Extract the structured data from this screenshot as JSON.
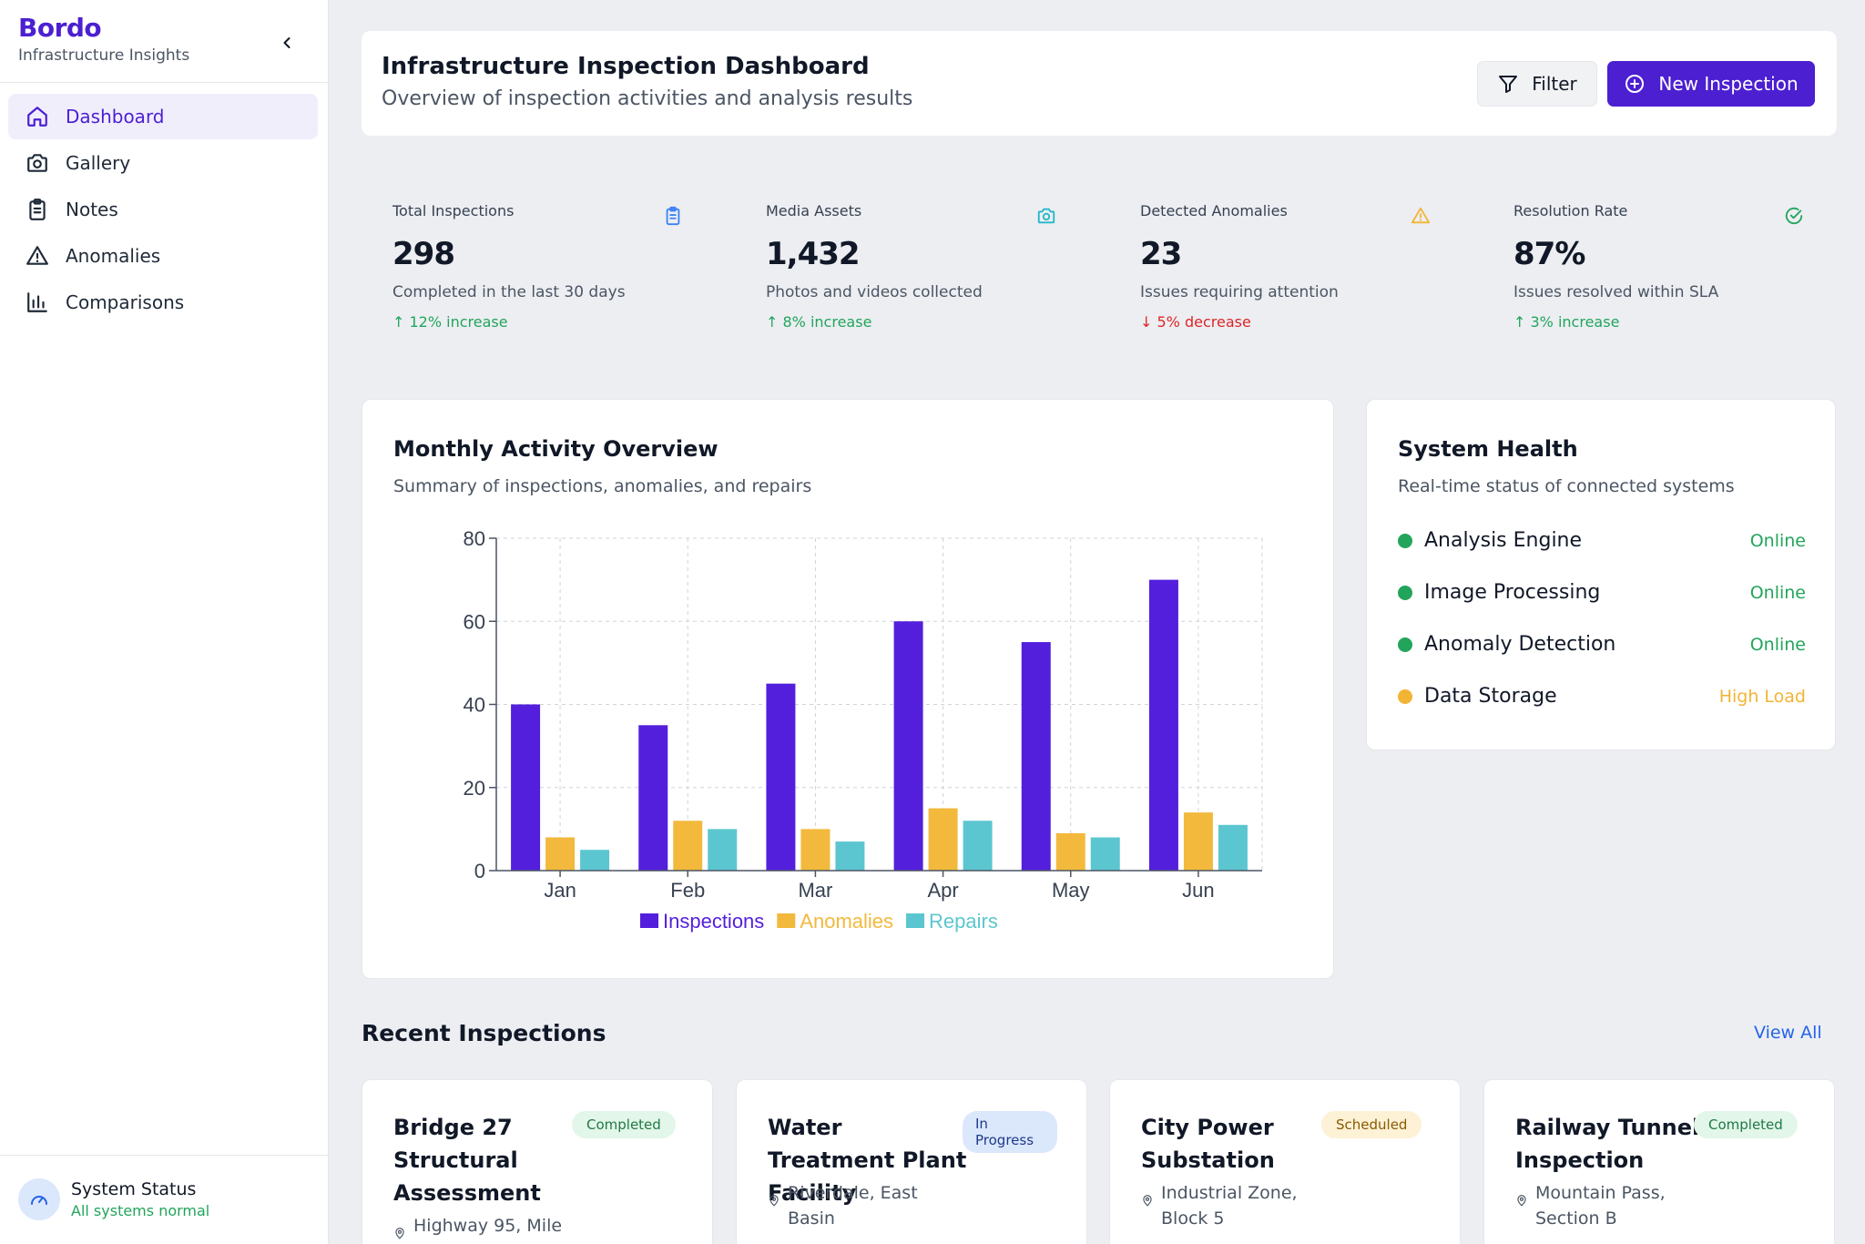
{
  "brand": {
    "name": "Bordo",
    "tagline": "Infrastructure Insights"
  },
  "nav": {
    "items": [
      {
        "label": "Dashboard",
        "icon": "home-icon",
        "active": true
      },
      {
        "label": "Gallery",
        "icon": "camera-icon",
        "active": false
      },
      {
        "label": "Notes",
        "icon": "clipboard-icon",
        "active": false
      },
      {
        "label": "Anomalies",
        "icon": "alert-triangle-icon",
        "active": false
      },
      {
        "label": "Comparisons",
        "icon": "bar-chart-icon",
        "active": false
      }
    ]
  },
  "system_status": {
    "title": "System Status",
    "subtitle": "All systems normal"
  },
  "header": {
    "title": "Infrastructure Inspection Dashboard",
    "subtitle": "Overview of inspection activities and analysis results",
    "filter_label": "Filter",
    "new_label": "New Inspection"
  },
  "stats": [
    {
      "label": "Total Inspections",
      "value": "298",
      "desc": "Completed in the last 30 days",
      "trend": "12% increase",
      "direction": "up",
      "icon": "clipboard-icon",
      "icon_color": "#3b82f6"
    },
    {
      "label": "Media Assets",
      "value": "1,432",
      "desc": "Photos and videos collected",
      "trend": "8% increase",
      "direction": "up",
      "icon": "camera-icon",
      "icon_color": "#22b8c8"
    },
    {
      "label": "Detected Anomalies",
      "value": "23",
      "desc": "Issues requiring attention",
      "trend": "5% decrease",
      "direction": "down",
      "icon": "alert-triangle-icon",
      "icon_color": "#f2b434"
    },
    {
      "label": "Resolution Rate",
      "value": "87%",
      "desc": "Issues resolved within SLA",
      "trend": "3% increase",
      "direction": "up",
      "icon": "check-circle-icon",
      "icon_color": "#22a55b"
    }
  ],
  "activity_card": {
    "title": "Monthly Activity Overview",
    "subtitle": "Summary of inspections, anomalies, and repairs"
  },
  "chart_data": {
    "type": "bar",
    "categories": [
      "Jan",
      "Feb",
      "Mar",
      "Apr",
      "May",
      "Jun"
    ],
    "series": [
      {
        "name": "Inspections",
        "color": "#531fdc",
        "values": [
          40,
          35,
          45,
          60,
          55,
          70
        ]
      },
      {
        "name": "Anomalies",
        "color": "#f2b93d",
        "values": [
          8,
          12,
          10,
          15,
          9,
          14
        ]
      },
      {
        "name": "Repairs",
        "color": "#5cc6d0",
        "values": [
          5,
          10,
          7,
          12,
          8,
          11
        ]
      }
    ],
    "ylim": [
      0,
      80
    ],
    "yticks": [
      0,
      20,
      40,
      60,
      80
    ],
    "grid": true,
    "legend": "bottom-center",
    "title": "",
    "xlabel": "",
    "ylabel": ""
  },
  "health": {
    "title": "System Health",
    "subtitle": "Real-time status of connected systems",
    "items": [
      {
        "name": "Analysis Engine",
        "state": "Online",
        "color": "#22a55b"
      },
      {
        "name": "Image Processing",
        "state": "Online",
        "color": "#22a55b"
      },
      {
        "name": "Anomaly Detection",
        "state": "Online",
        "color": "#22a55b"
      },
      {
        "name": "Data Storage",
        "state": "High Load",
        "color": "#f2b434"
      }
    ]
  },
  "recent": {
    "title": "Recent Inspections",
    "view_all": "View All",
    "items": [
      {
        "title": "Bridge 27 Structural Assessment",
        "status": "Completed",
        "location": "Highway 95, Mile"
      },
      {
        "title": "Water Treatment Plant Facility",
        "status": "In Progress",
        "location": "Riverdale, East Basin"
      },
      {
        "title": "City Power Substation",
        "status": "Scheduled",
        "location": "Industrial Zone, Block 5"
      },
      {
        "title": "Railway Tunnel Inspection",
        "status": "Completed",
        "location": "Mountain Pass, Section B"
      }
    ]
  }
}
